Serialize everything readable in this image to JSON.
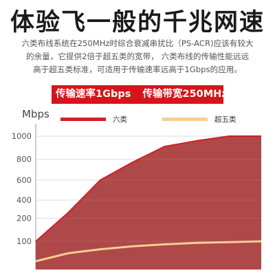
{
  "header": {
    "title": "体验飞一般的千兆网速",
    "description": [
      "六类布线系统在250MHz时综合衰减串扰比（PS-ACR)应该有较大",
      "的余量，它提供2倍于超五类的宽带，   六类布线的传输性能远远",
      "高于超五类标准，可适用于传输速率远高于1Gbps的应用。"
    ]
  },
  "banner": {
    "rate": "传输速率1Gbps",
    "bandwidth": "传输带宽250MHz"
  },
  "colors": {
    "accent": "#d7141a",
    "cat6_area": "#a83838",
    "cat6_line": "#d21f26",
    "cat5e_line": "#f4cf95"
  },
  "chart_data": {
    "type": "area",
    "ylabel": "Mbps",
    "yticks": [
      100,
      200,
      400,
      600,
      800,
      1000
    ],
    "ylim": [
      0,
      1050
    ],
    "grid": true,
    "legend_position": "top",
    "series": [
      {
        "name": "六类",
        "values": [
          100,
          260,
          600,
          770,
          910,
          960,
          1000,
          1000
        ]
      },
      {
        "name": "超五类",
        "values": [
          0,
          40,
          60,
          75,
          85,
          92,
          96,
          100
        ]
      }
    ]
  }
}
